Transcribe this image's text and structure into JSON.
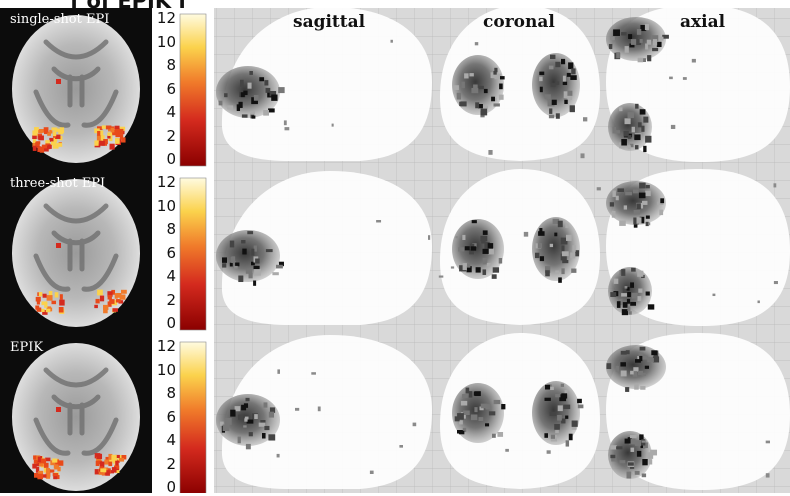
{
  "figure": {
    "title_fragment": "f             of EPIK i",
    "views": [
      "sagittal",
      "coronal",
      "axial"
    ],
    "rows": [
      {
        "method": "single-shot EPI"
      },
      {
        "method": "three-shot EPI"
      },
      {
        "method": "EPIK"
      }
    ],
    "colorbar": {
      "ticks": [
        "12",
        "10",
        "8",
        "6",
        "4",
        "2",
        "0"
      ],
      "colors": [
        "#8b0000",
        "#d42a1e",
        "#f07a2a",
        "#fbd24c",
        "#fffbe0"
      ]
    }
  }
}
